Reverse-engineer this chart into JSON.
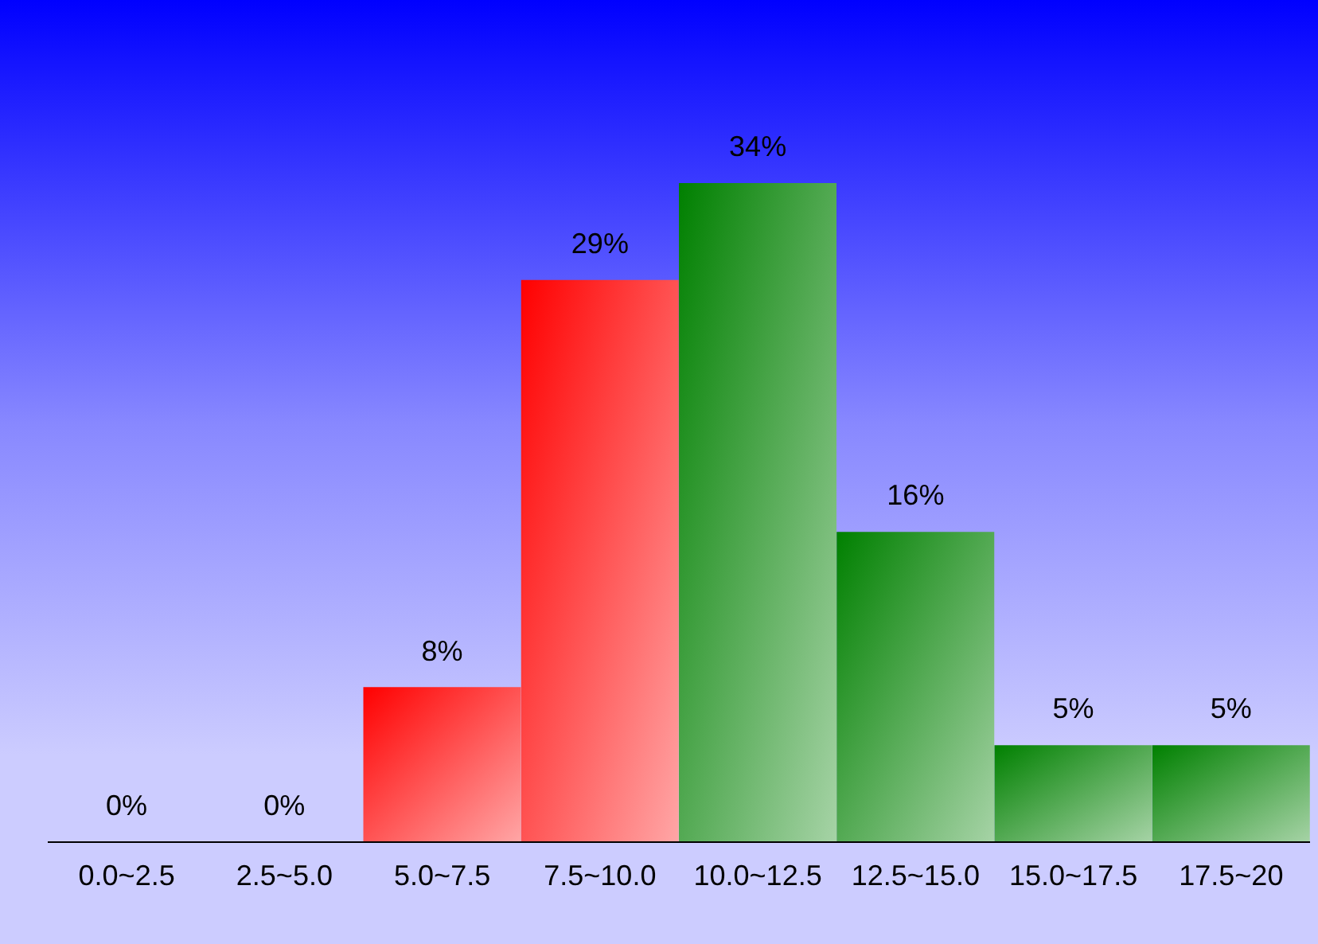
{
  "chart_data": {
    "type": "bar",
    "categories": [
      "0.0~2.5",
      "2.5~5.0",
      "5.0~7.5",
      "7.5~10.0",
      "10.0~12.5",
      "12.5~15.0",
      "15.0~17.5",
      "17.5~20"
    ],
    "values": [
      0,
      0,
      8,
      29,
      34,
      16,
      5,
      5
    ],
    "value_labels": [
      "0%",
      "0%",
      "8%",
      "29%",
      "34%",
      "16%",
      "5%",
      "5%"
    ],
    "colors": [
      "#008000",
      "#008000",
      "#ff0000",
      "#ff0000",
      "#008000",
      "#008000",
      "#008000",
      "#008000"
    ],
    "grid": false,
    "legend": false
  }
}
